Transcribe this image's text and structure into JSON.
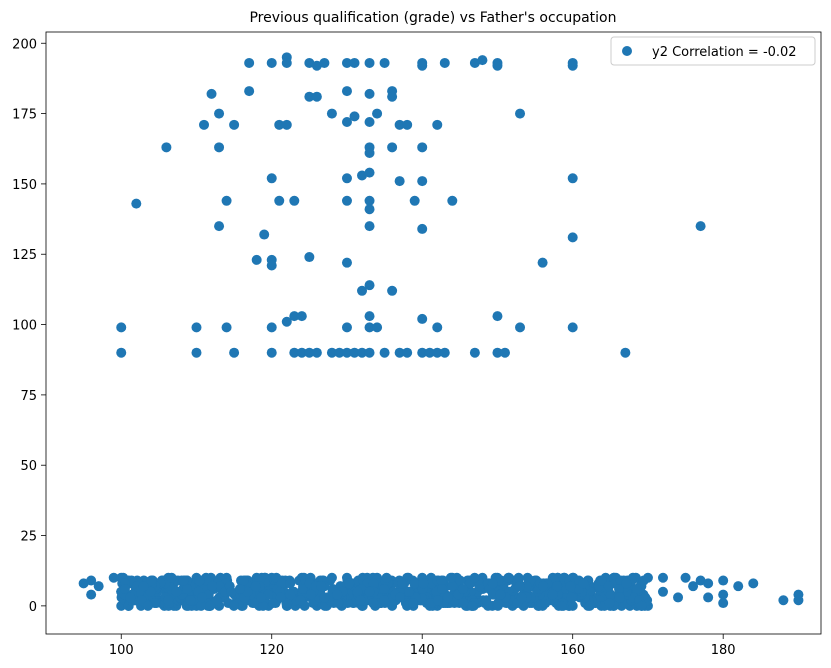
{
  "chart_data": {
    "type": "scatter",
    "title": "Previous qualification (grade) vs Father's occupation",
    "xlabel": "",
    "ylabel": "",
    "xlim": [
      90,
      193
    ],
    "ylim": [
      -10,
      204
    ],
    "xticks": [
      100,
      120,
      140,
      160,
      180
    ],
    "yticks": [
      0,
      25,
      50,
      75,
      100,
      125,
      150,
      175,
      200
    ],
    "grid": false,
    "legend": {
      "placement": "top-right",
      "entries": [
        "y2 Correlation = -0.02"
      ]
    },
    "marker_color": "#1f77b4",
    "series": [
      {
        "name": "y2 Correlation = -0.02",
        "points": [
          [
            100,
            90
          ],
          [
            100,
            99
          ],
          [
            102,
            143
          ],
          [
            106,
            163
          ],
          [
            110,
            90
          ],
          [
            110,
            99
          ],
          [
            111,
            171
          ],
          [
            112,
            182
          ],
          [
            113,
            175
          ],
          [
            113,
            163
          ],
          [
            113,
            135
          ],
          [
            114,
            144
          ],
          [
            114,
            99
          ],
          [
            115,
            171
          ],
          [
            115,
            90
          ],
          [
            117,
            193
          ],
          [
            117,
            183
          ],
          [
            118,
            123
          ],
          [
            119,
            132
          ],
          [
            120,
            152
          ],
          [
            120,
            123
          ],
          [
            120,
            121
          ],
          [
            120,
            99
          ],
          [
            120,
            90
          ],
          [
            120,
            193
          ],
          [
            121,
            171
          ],
          [
            121,
            144
          ],
          [
            122,
            195
          ],
          [
            122,
            193
          ],
          [
            122,
            171
          ],
          [
            122,
            101
          ],
          [
            123,
            144
          ],
          [
            123,
            103
          ],
          [
            123,
            90
          ],
          [
            124,
            103
          ],
          [
            124,
            90
          ],
          [
            125,
            193
          ],
          [
            125,
            181
          ],
          [
            125,
            124
          ],
          [
            125,
            90
          ],
          [
            126,
            192
          ],
          [
            126,
            181
          ],
          [
            126,
            90
          ],
          [
            127,
            193
          ],
          [
            128,
            175
          ],
          [
            128,
            90
          ],
          [
            129,
            90
          ],
          [
            130,
            193
          ],
          [
            130,
            183
          ],
          [
            130,
            172
          ],
          [
            130,
            152
          ],
          [
            130,
            144
          ],
          [
            130,
            122
          ],
          [
            130,
            99
          ],
          [
            130,
            90
          ],
          [
            131,
            193
          ],
          [
            131,
            174
          ],
          [
            131,
            90
          ],
          [
            132,
            153
          ],
          [
            132,
            112
          ],
          [
            132,
            90
          ],
          [
            133,
            193
          ],
          [
            133,
            182
          ],
          [
            133,
            172
          ],
          [
            133,
            163
          ],
          [
            133,
            161
          ],
          [
            133,
            154
          ],
          [
            133,
            144
          ],
          [
            133,
            141
          ],
          [
            133,
            135
          ],
          [
            133,
            114
          ],
          [
            133,
            103
          ],
          [
            133,
            99
          ],
          [
            133,
            90
          ],
          [
            134,
            175
          ],
          [
            134,
            99
          ],
          [
            135,
            193
          ],
          [
            135,
            90
          ],
          [
            136,
            183
          ],
          [
            136,
            181
          ],
          [
            136,
            163
          ],
          [
            136,
            112
          ],
          [
            137,
            171
          ],
          [
            137,
            151
          ],
          [
            137,
            90
          ],
          [
            138,
            171
          ],
          [
            138,
            90
          ],
          [
            139,
            144
          ],
          [
            140,
            193
          ],
          [
            140,
            192
          ],
          [
            140,
            163
          ],
          [
            140,
            151
          ],
          [
            140,
            134
          ],
          [
            140,
            102
          ],
          [
            140,
            90
          ],
          [
            141,
            90
          ],
          [
            142,
            171
          ],
          [
            142,
            99
          ],
          [
            142,
            90
          ],
          [
            143,
            193
          ],
          [
            143,
            90
          ],
          [
            144,
            144
          ],
          [
            147,
            193
          ],
          [
            147,
            90
          ],
          [
            148,
            194
          ],
          [
            150,
            193
          ],
          [
            150,
            192
          ],
          [
            150,
            103
          ],
          [
            150,
            90
          ],
          [
            151,
            90
          ],
          [
            153,
            175
          ],
          [
            153,
            99
          ],
          [
            156,
            122
          ],
          [
            160,
            193
          ],
          [
            160,
            192
          ],
          [
            160,
            152
          ],
          [
            160,
            131
          ],
          [
            160,
            99
          ],
          [
            167,
            90
          ],
          [
            177,
            135
          ]
        ],
        "low_band_note": "",
        "low_band": {
          "x_range": [
            95,
            190
          ],
          "y_range": [
            0,
            10
          ],
          "sample_points": [
            [
              95,
              8
            ],
            [
              96,
              9
            ],
            [
              96,
              4
            ],
            [
              97,
              7
            ],
            [
              99,
              10
            ],
            [
              100,
              10
            ],
            [
              100,
              0
            ],
            [
              100,
              5
            ],
            [
              101,
              9
            ],
            [
              102,
              2
            ],
            [
              103,
              9
            ],
            [
              103,
              2
            ],
            [
              105,
              8
            ],
            [
              106,
              9
            ],
            [
              107,
              0
            ],
            [
              108,
              9
            ],
            [
              110,
              10
            ],
            [
              110,
              0
            ],
            [
              112,
              9
            ],
            [
              113,
              0
            ],
            [
              114,
              10
            ],
            [
              116,
              0
            ],
            [
              118,
              10
            ],
            [
              120,
              10
            ],
            [
              122,
              0
            ],
            [
              124,
              10
            ],
            [
              126,
              0
            ],
            [
              128,
              10
            ],
            [
              130,
              10
            ],
            [
              132,
              0
            ],
            [
              134,
              10
            ],
            [
              136,
              0
            ],
            [
              138,
              10
            ],
            [
              140,
              10
            ],
            [
              142,
              0
            ],
            [
              144,
              10
            ],
            [
              146,
              0
            ],
            [
              148,
              10
            ],
            [
              150,
              10
            ],
            [
              152,
              0
            ],
            [
              154,
              10
            ],
            [
              155,
              9
            ],
            [
              156,
              0
            ],
            [
              158,
              10
            ],
            [
              160,
              10
            ],
            [
              160,
              0
            ],
            [
              162,
              9
            ],
            [
              163,
              1
            ],
            [
              164,
              8
            ],
            [
              165,
              0
            ],
            [
              166,
              8
            ],
            [
              167,
              4
            ],
            [
              168,
              10
            ],
            [
              170,
              10
            ],
            [
              170,
              0
            ],
            [
              172,
              10
            ],
            [
              172,
              5
            ],
            [
              174,
              3
            ],
            [
              175,
              10
            ],
            [
              176,
              7
            ],
            [
              177,
              9
            ],
            [
              178,
              8
            ],
            [
              178,
              3
            ],
            [
              180,
              9
            ],
            [
              180,
              4
            ],
            [
              180,
              1
            ],
            [
              182,
              7
            ],
            [
              184,
              8
            ],
            [
              188,
              2
            ],
            [
              190,
              4
            ],
            [
              190,
              2
            ]
          ]
        }
      }
    ]
  }
}
